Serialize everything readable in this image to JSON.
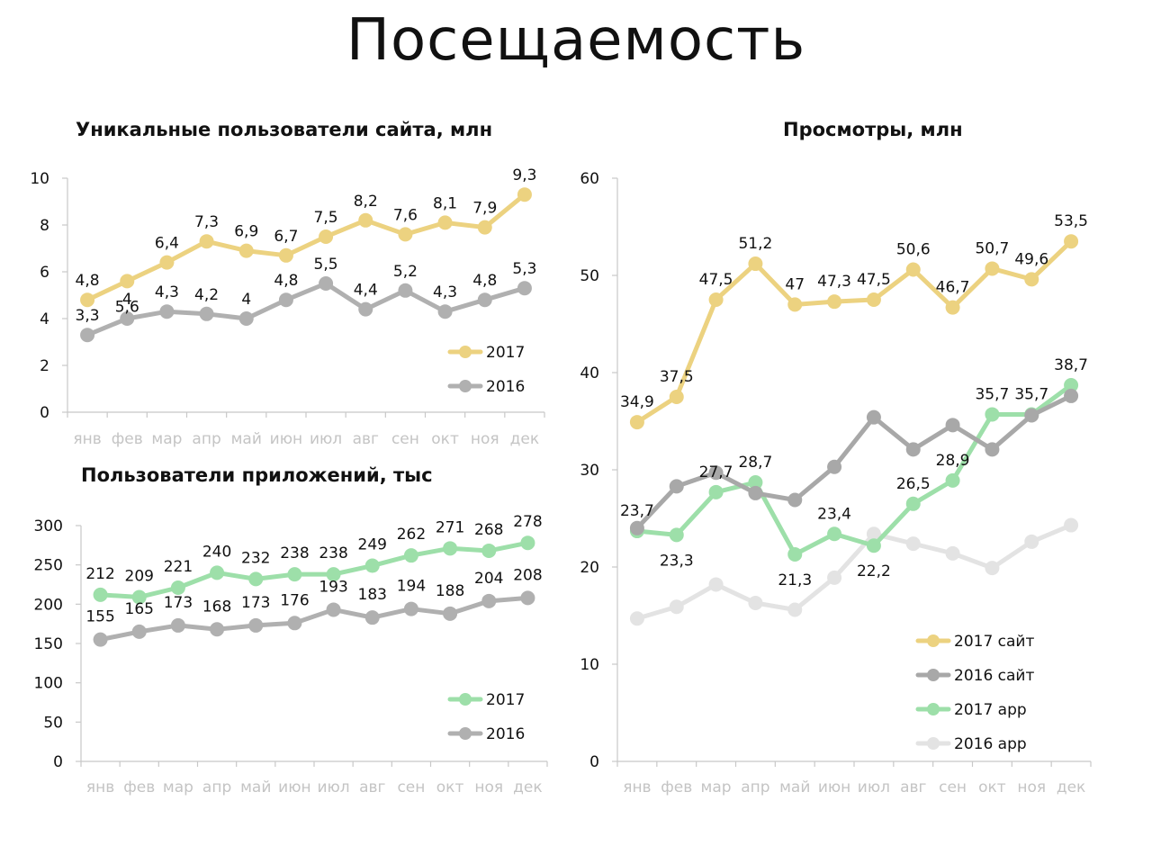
{
  "page": {
    "title": "Посещаемость"
  },
  "chart_data": [
    {
      "id": "site",
      "type": "line",
      "title": "Уникальные пользователи сайта, млн",
      "categories": [
        "янв",
        "фев",
        "мар",
        "апр",
        "май",
        "июн",
        "июл",
        "авг",
        "сен",
        "окт",
        "ноя",
        "дек"
      ],
      "ylim": [
        0,
        10
      ],
      "yticks": [
        0,
        2,
        4,
        6,
        8,
        10
      ],
      "grid": false,
      "legend": "right",
      "series": [
        {
          "name": "2017",
          "color": "#ecd280",
          "values": [
            4.8,
            5.6,
            6.4,
            7.3,
            6.9,
            6.7,
            7.5,
            8.2,
            7.6,
            8.1,
            7.9,
            9.3
          ],
          "labels": [
            "4,8",
            "5,6",
            "6,4",
            "7,3",
            "6,9",
            "6,7",
            "7,5",
            "8,2",
            "7,6",
            "8,1",
            "7,9",
            "9,3"
          ]
        },
        {
          "name": "2016",
          "color": "#b0b0b0",
          "values": [
            3.3,
            4,
            4.3,
            4.2,
            4,
            4.8,
            5.5,
            4.4,
            5.2,
            4.3,
            4.8,
            5.3
          ],
          "labels": [
            "3,3",
            "4",
            "4,3",
            "4,2",
            "4",
            "4,8",
            "5,5",
            "4,4",
            "5,2",
            "4,3",
            "4,8",
            "5,3"
          ]
        }
      ]
    },
    {
      "id": "app",
      "type": "line",
      "title": "Пользователи приложений, тыс",
      "categories": [
        "янв",
        "фев",
        "мар",
        "апр",
        "май",
        "июн",
        "июл",
        "авг",
        "сен",
        "окт",
        "ноя",
        "дек"
      ],
      "ylim": [
        0,
        300
      ],
      "yticks": [
        0,
        50,
        100,
        150,
        200,
        250,
        300
      ],
      "grid": false,
      "legend": "right",
      "series": [
        {
          "name": "2017",
          "color": "#9ddfa9",
          "values": [
            212,
            209,
            221,
            240,
            232,
            238,
            238,
            249,
            262,
            271,
            268,
            278
          ],
          "labels": [
            "212",
            "209",
            "221",
            "240",
            "232",
            "238",
            "238",
            "249",
            "262",
            "271",
            "268",
            "278"
          ]
        },
        {
          "name": "2016",
          "color": "#b0b0b0",
          "values": [
            155,
            165,
            173,
            168,
            173,
            176,
            193,
            183,
            194,
            188,
            204,
            208
          ],
          "labels": [
            "155",
            "165",
            "173",
            "168",
            "173",
            "176",
            "193",
            "183",
            "194",
            "188",
            "204",
            "208"
          ]
        }
      ]
    },
    {
      "id": "views",
      "type": "line",
      "title": "Просмотры, млн",
      "categories": [
        "янв",
        "фев",
        "мар",
        "апр",
        "май",
        "июн",
        "июл",
        "авг",
        "сен",
        "окт",
        "ноя",
        "дек"
      ],
      "ylim": [
        0,
        60
      ],
      "yticks": [
        0,
        10,
        20,
        30,
        40,
        50,
        60
      ],
      "grid": false,
      "legend": "bottom-right",
      "series": [
        {
          "name": "2017 сайт",
          "color": "#ecd280",
          "values": [
            34.9,
            37.5,
            47.5,
            51.2,
            47,
            47.3,
            47.5,
            50.6,
            46.7,
            50.7,
            49.6,
            53.5
          ],
          "labels": [
            "34,9",
            "37,5",
            "47,5",
            "51,2",
            "47",
            "47,3",
            "47,5",
            "50,6",
            "46,7",
            "50,7",
            "49,6",
            "53,5"
          ]
        },
        {
          "name": "2016 сайт",
          "color": "#a8a8a8",
          "values": [
            24,
            28.3,
            29.7,
            27.6,
            26.9,
            30.3,
            35.4,
            32.1,
            34.6,
            32.1,
            35.6,
            37.6
          ],
          "labels": []
        },
        {
          "name": "2017 app",
          "color": "#9ddfa9",
          "values": [
            23.7,
            23.3,
            27.7,
            28.7,
            21.3,
            23.4,
            22.2,
            26.5,
            28.9,
            35.7,
            35.7,
            38.7
          ],
          "labels": [
            "23,7",
            "23,3",
            "27,7",
            "28,7",
            "21,3",
            "23,4",
            "22,2",
            "26,5",
            "28,9",
            "35,7",
            "35,7",
            "38,7"
          ]
        },
        {
          "name": "2016 app",
          "color": "#e3e3e3",
          "values": [
            14.7,
            15.9,
            18.2,
            16.3,
            15.6,
            18.9,
            23.4,
            22.4,
            21.4,
            19.9,
            22.6,
            24.3
          ],
          "labels": []
        }
      ]
    }
  ]
}
